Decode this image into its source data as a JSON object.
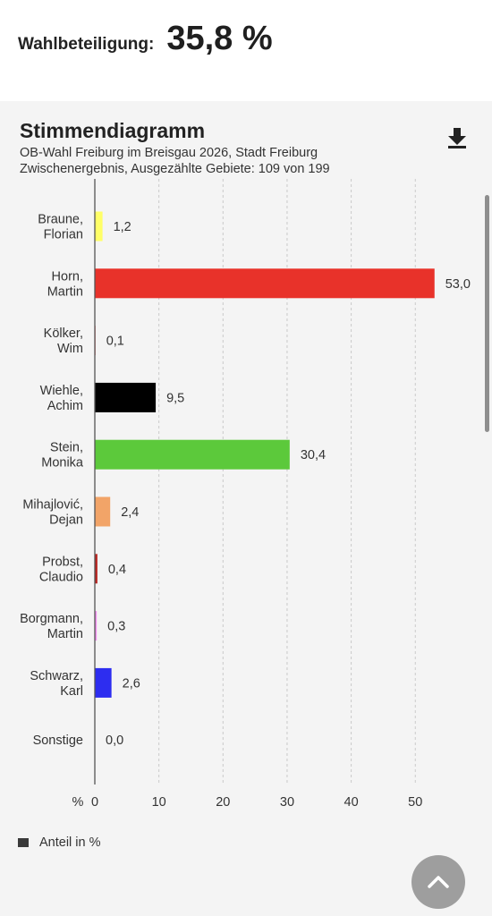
{
  "turnout": {
    "label": "Wahlbeteiligung:",
    "value": "35,8 %"
  },
  "chart_header": {
    "title": "Stimmendiagramm",
    "subtitle1": "OB-Wahl Freiburg im Breisgau 2026, Stadt Freiburg",
    "subtitle2": "Zwischenergebnis, Ausgezählte Gebiete: 109 von 199"
  },
  "icons": {
    "download": "download-icon",
    "scroll_top": "chevron-up-icon"
  },
  "legend": {
    "label": "Anteil in %"
  },
  "chart_data": {
    "type": "bar",
    "orientation": "horizontal",
    "categories": [
      [
        "Braune,",
        "Florian"
      ],
      [
        "Horn,",
        "Martin"
      ],
      [
        "Kölker,",
        "Wim"
      ],
      [
        "Wiehle,",
        "Achim"
      ],
      [
        "Stein,",
        "Monika"
      ],
      [
        "Mihajlović,",
        "Dejan"
      ],
      [
        "Probst,",
        "Claudio"
      ],
      [
        "Borgmann,",
        "Martin"
      ],
      [
        "Schwarz,",
        "Karl"
      ],
      [
        "Sonstige"
      ]
    ],
    "values": [
      1.2,
      53.0,
      0.1,
      9.5,
      30.4,
      2.4,
      0.4,
      0.3,
      2.6,
      0.0
    ],
    "value_labels": [
      "1,2",
      "53,0",
      "0,1",
      "9,5",
      "30,4",
      "2,4",
      "0,4",
      "0,3",
      "2,6",
      "0,0"
    ],
    "colors": [
      "#ffff66",
      "#e8322a",
      "#e8322a",
      "#000000",
      "#5cc93b",
      "#f2a468",
      "#b8231e",
      "#f28ff0",
      "#2d2df0",
      "#999999"
    ],
    "x_ticks": [
      0,
      10,
      20,
      30,
      40,
      50
    ],
    "x_unit_label": "%",
    "xlim": [
      0,
      60
    ],
    "series": [
      {
        "name": "Anteil in %",
        "values": [
          1.2,
          53.0,
          0.1,
          9.5,
          30.4,
          2.4,
          0.4,
          0.3,
          2.6,
          0.0
        ]
      }
    ],
    "grid": true,
    "legend_position": "bottom-left"
  }
}
